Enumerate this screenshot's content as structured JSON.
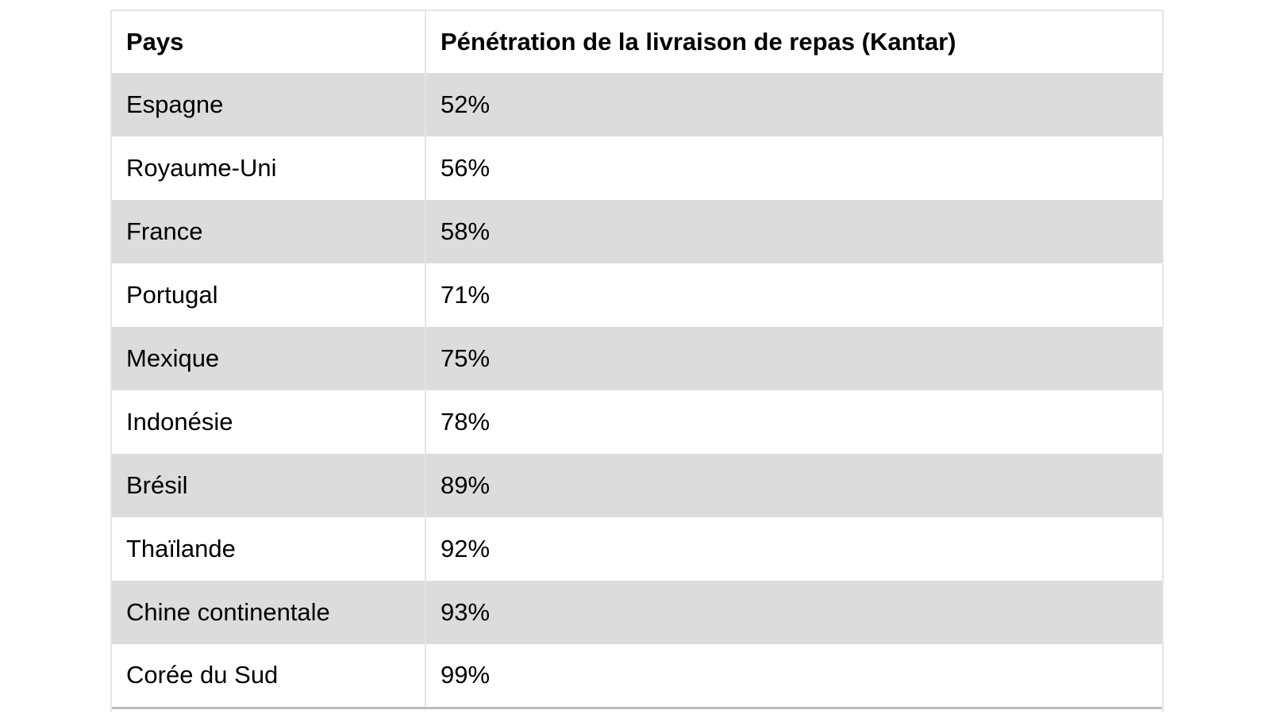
{
  "table": {
    "headers": [
      "Pays",
      "Pénétration de la livraison de repas (Kantar)"
    ],
    "rows": [
      {
        "country": "Espagne",
        "value": "52%"
      },
      {
        "country": "Royaume-Uni",
        "value": "56%"
      },
      {
        "country": "France",
        "value": "58%"
      },
      {
        "country": "Portugal",
        "value": "71%"
      },
      {
        "country": "Mexique",
        "value": "75%"
      },
      {
        "country": "Indonésie",
        "value": "78%"
      },
      {
        "country": "Brésil",
        "value": "89%"
      },
      {
        "country": "Thaïlande",
        "value": "92%"
      },
      {
        "country": "Chine continentale",
        "value": "93%"
      },
      {
        "country": "Corée du Sud",
        "value": "99%"
      }
    ]
  },
  "colors": {
    "shaded_row": "#dcdcdc",
    "plain_row": "#ffffff",
    "border": "#e6e6e6"
  },
  "chart_data": {
    "type": "table",
    "columns": [
      "Pays",
      "Pénétration de la livraison de repas (Kantar)"
    ],
    "categories": [
      "Espagne",
      "Royaume-Uni",
      "France",
      "Portugal",
      "Mexique",
      "Indonésie",
      "Brésil",
      "Thaïlande",
      "Chine continentale",
      "Corée du Sud"
    ],
    "values": [
      52,
      56,
      58,
      71,
      75,
      78,
      89,
      92,
      93,
      99
    ],
    "unit": "%"
  }
}
